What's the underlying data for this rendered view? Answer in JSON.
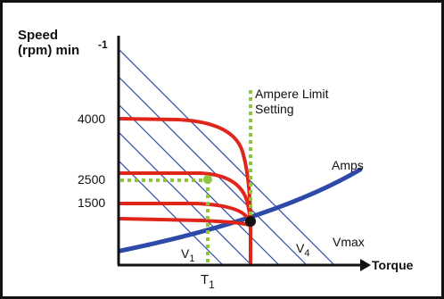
{
  "labels": {
    "y_axis_line1": "Speed",
    "y_axis_line2": "(rpm) min",
    "y_axis_exp": "-1",
    "x_axis": "Torque",
    "speed_4000": "4000",
    "speed_2500": "2500",
    "speed_1500": "1500",
    "limit_line1": "Ampere Limit",
    "limit_line2": "Setting",
    "amps": "Amps",
    "vmax": "Vmax",
    "v4_base": "V",
    "v4_sub": "4",
    "v1_base": "V",
    "v1_sub": "1",
    "t1_base": "T",
    "t1_sub": "1"
  },
  "colors": {
    "axis": "#111111",
    "speed_curves": "#e0261b",
    "amps_curve": "#2d4aa8",
    "voltage_lines": "#2d4aa8",
    "limit_marker": "#8cc63f",
    "intersection_dot": "#111111"
  },
  "icons": {
    "operating_point": "green-dot",
    "intersection": "black-dot"
  }
}
